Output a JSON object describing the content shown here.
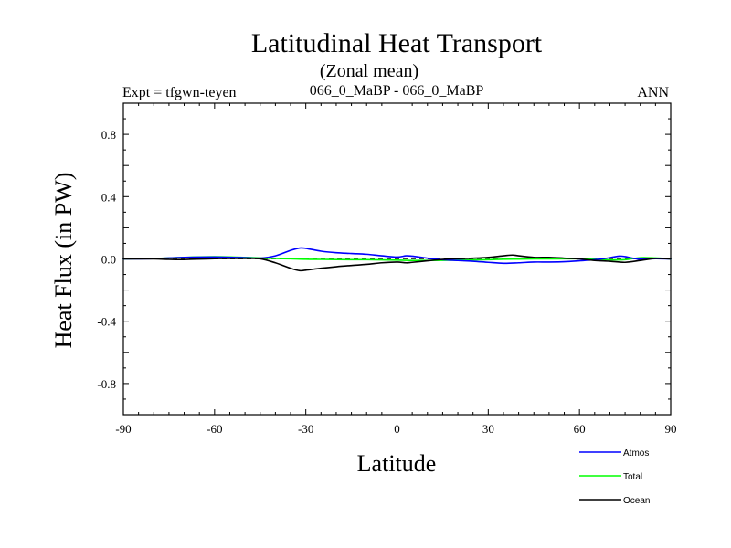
{
  "chart_data": {
    "type": "line",
    "title": "Latitudinal Heat Transport",
    "subtitle": "(Zonal mean)",
    "left_label": "Expt = tfgwn-teyen",
    "center_label": "066_0_MaBP - 066_0_MaBP",
    "right_label": "ANN",
    "xlabel": "Latitude",
    "ylabel": "Heat Flux (in PW)",
    "xlim": [
      -90,
      90
    ],
    "ylim": [
      -1.0,
      1.0
    ],
    "x_ticks": [
      -90,
      -60,
      -30,
      0,
      30,
      60,
      90
    ],
    "x_tick_labels": [
      "-90",
      "-60",
      "-30",
      "0",
      "30",
      "60",
      "90"
    ],
    "y_ticks": [
      0.8,
      0.4,
      0.0,
      -0.4,
      -0.8
    ],
    "y_tick_labels": [
      "0.8",
      "0.4",
      "0.0",
      "-0.4",
      "-0.8"
    ],
    "zero_line": "dashed",
    "legend_position": "bottom-right",
    "series": [
      {
        "name": "Atmos",
        "color": "#0000ff",
        "x": [
          -90,
          -80,
          -70,
          -60,
          -50,
          -45,
          -40,
          -35,
          -32,
          -30,
          -25,
          -20,
          -15,
          -10,
          -5,
          0,
          3,
          5,
          10,
          15,
          20,
          25,
          30,
          35,
          40,
          45,
          50,
          55,
          60,
          65,
          70,
          73,
          75,
          78,
          80,
          85,
          90
        ],
        "y": [
          0.0,
          0.002,
          0.01,
          0.012,
          0.008,
          0.005,
          0.02,
          0.055,
          0.07,
          0.068,
          0.05,
          0.04,
          0.035,
          0.03,
          0.02,
          0.012,
          0.02,
          0.018,
          0.005,
          -0.005,
          -0.01,
          -0.015,
          -0.022,
          -0.028,
          -0.025,
          -0.02,
          -0.02,
          -0.018,
          -0.012,
          -0.005,
          0.008,
          0.018,
          0.015,
          0.003,
          -0.002,
          0.002,
          0.0
        ]
      },
      {
        "name": "Total",
        "color": "#00ff00",
        "x": [
          -90,
          -80,
          -70,
          -60,
          -50,
          -45,
          -40,
          -35,
          -30,
          -25,
          -20,
          -15,
          -10,
          -5,
          0,
          5,
          10,
          15,
          20,
          25,
          30,
          35,
          40,
          45,
          50,
          55,
          60,
          65,
          70,
          75,
          80,
          85,
          90
        ],
        "y": [
          0.0,
          0.003,
          0.01,
          0.014,
          0.01,
          0.006,
          0.003,
          0.001,
          -0.002,
          -0.003,
          -0.004,
          -0.005,
          -0.005,
          -0.006,
          -0.008,
          -0.01,
          -0.01,
          -0.009,
          -0.008,
          -0.006,
          -0.005,
          -0.002,
          -0.001,
          0.0,
          0.0,
          0.001,
          0.001,
          -0.002,
          -0.006,
          -0.005,
          0.008,
          0.006,
          0.0
        ]
      },
      {
        "name": "Ocean",
        "color": "#000000",
        "x": [
          -90,
          -80,
          -75,
          -70,
          -60,
          -50,
          -45,
          -40,
          -35,
          -32,
          -30,
          -25,
          -20,
          -15,
          -10,
          -5,
          0,
          3,
          5,
          10,
          15,
          20,
          25,
          30,
          35,
          38,
          40,
          45,
          50,
          55,
          60,
          65,
          70,
          75,
          80,
          85,
          90
        ],
        "y": [
          0.0,
          0.0,
          -0.003,
          -0.004,
          0.002,
          0.003,
          0.001,
          -0.025,
          -0.06,
          -0.075,
          -0.072,
          -0.06,
          -0.05,
          -0.042,
          -0.035,
          -0.025,
          -0.02,
          -0.025,
          -0.022,
          -0.012,
          -0.003,
          0.002,
          0.005,
          0.01,
          0.02,
          0.025,
          0.02,
          0.01,
          0.01,
          0.005,
          0.0,
          -0.01,
          -0.015,
          -0.022,
          -0.01,
          0.003,
          0.0
        ]
      }
    ]
  }
}
